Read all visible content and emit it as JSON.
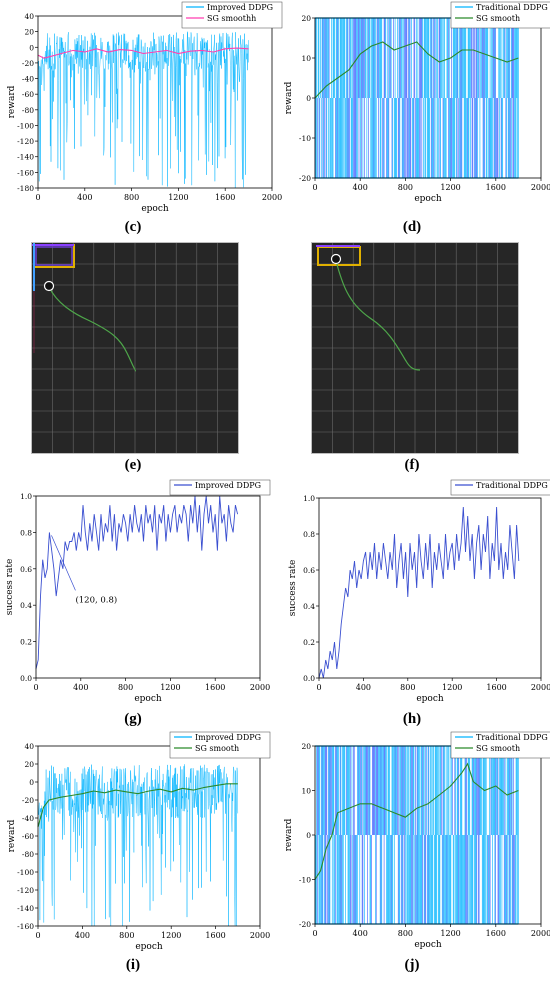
{
  "chart_data": [
    {
      "id": "c",
      "type": "line",
      "panel_label": "(c)",
      "xlabel": "epoch",
      "ylabel": "reward",
      "xlim": [
        0,
        2000
      ],
      "ylim": [
        -180,
        40
      ],
      "xticks": [
        0,
        400,
        800,
        1200,
        1600,
        2000
      ],
      "yticks": [
        40,
        20,
        0,
        -20,
        -40,
        -60,
        -80,
        -100,
        -120,
        -140,
        -160,
        -180
      ],
      "legend_position": "top-right",
      "series": [
        {
          "name": "Improved DDPG",
          "color": "#00b4ff",
          "style": "noisy",
          "x_range": [
            0,
            1800
          ],
          "band": [
            -30,
            20
          ],
          "floor": -180,
          "spike_rate": 0.18
        },
        {
          "name": "SG smoothh",
          "color": "#ff3fb0",
          "style": "smooth",
          "x": [
            0,
            50,
            100,
            200,
            300,
            400,
            500,
            600,
            700,
            800,
            900,
            1000,
            1100,
            1200,
            1300,
            1400,
            1500,
            1600,
            1700,
            1800
          ],
          "y": [
            -10,
            -14,
            -12,
            -8,
            -4,
            -6,
            -2,
            -6,
            -3,
            -4,
            -8,
            -6,
            -4,
            -8,
            -5,
            -4,
            -6,
            -2,
            -1,
            -2
          ]
        }
      ]
    },
    {
      "id": "d",
      "type": "line",
      "panel_label": "(d)",
      "xlabel": "epoch",
      "ylabel": "reward",
      "xlim": [
        0,
        2000
      ],
      "ylim": [
        -20,
        20
      ],
      "xticks": [
        0,
        400,
        800,
        1200,
        1600,
        2000
      ],
      "yticks": [
        20,
        10,
        0,
        -10,
        -20
      ],
      "legend_position": "top-right",
      "series": [
        {
          "name": "Traditional DDPG",
          "color": "#00b4ff",
          "style": "bars",
          "x_range": [
            0,
            1800
          ],
          "band": [
            -20,
            20
          ]
        },
        {
          "name": "SG smooth",
          "color": "#2a8a2a",
          "style": "smooth",
          "x": [
            0,
            100,
            200,
            300,
            400,
            500,
            600,
            700,
            800,
            900,
            1000,
            1100,
            1200,
            1300,
            1400,
            1500,
            1600,
            1700,
            1800
          ],
          "y": [
            0,
            3,
            5,
            7,
            11,
            13,
            14,
            12,
            13,
            14,
            11,
            9,
            10,
            12,
            12,
            11,
            10,
            9,
            10
          ]
        }
      ]
    },
    {
      "id": "g",
      "type": "line",
      "panel_label": "(g)",
      "xlabel": "epoch",
      "ylabel": "success rate",
      "xlim": [
        0,
        2000
      ],
      "ylim": [
        0,
        1.0
      ],
      "xticks": [
        0,
        400,
        800,
        1200,
        1600,
        2000
      ],
      "yticks": [
        1.0,
        0.8,
        0.6,
        0.4,
        0.2,
        0.0
      ],
      "legend_position": "top-right",
      "annotation": {
        "text": "(120, 0.8)",
        "x": 120,
        "y": 0.8
      },
      "series": [
        {
          "name": "Improved DDPG",
          "color": "#3a4fd0",
          "style": "line",
          "x": [
            0,
            20,
            40,
            60,
            80,
            100,
            120,
            140,
            160,
            180,
            200,
            220,
            240,
            260,
            280,
            300,
            320,
            340,
            360,
            380,
            400,
            420,
            440,
            460,
            480,
            500,
            520,
            540,
            560,
            580,
            600,
            620,
            640,
            660,
            680,
            700,
            720,
            740,
            760,
            780,
            800,
            820,
            840,
            860,
            880,
            900,
            920,
            940,
            960,
            980,
            1000,
            1020,
            1040,
            1060,
            1080,
            1100,
            1120,
            1140,
            1160,
            1180,
            1200,
            1220,
            1240,
            1260,
            1280,
            1300,
            1320,
            1340,
            1360,
            1380,
            1400,
            1420,
            1440,
            1460,
            1480,
            1500,
            1520,
            1540,
            1560,
            1580,
            1600,
            1620,
            1640,
            1660,
            1680,
            1700,
            1720,
            1740,
            1760,
            1780,
            1800
          ],
          "y": [
            0.05,
            0.1,
            0.45,
            0.65,
            0.55,
            0.6,
            0.8,
            0.7,
            0.6,
            0.45,
            0.55,
            0.65,
            0.6,
            0.75,
            0.7,
            0.75,
            0.75,
            0.8,
            0.7,
            0.8,
            0.75,
            0.95,
            0.8,
            0.7,
            0.85,
            0.75,
            0.9,
            0.8,
            0.7,
            0.9,
            0.75,
            0.85,
            0.8,
            0.95,
            0.75,
            0.9,
            0.7,
            0.85,
            0.8,
            0.9,
            0.85,
            0.75,
            0.9,
            0.8,
            0.95,
            0.85,
            0.8,
            0.9,
            0.75,
            0.95,
            0.85,
            0.9,
            0.8,
            0.95,
            0.7,
            0.9,
            0.85,
            0.95,
            0.75,
            0.9,
            0.8,
            0.9,
            0.95,
            0.8,
            0.9,
            0.85,
            0.95,
            0.9,
            0.75,
            0.95,
            0.85,
            1.0,
            0.8,
            0.95,
            0.7,
            0.9,
            1.0,
            0.85,
            0.95,
            0.8,
            0.9,
            0.7,
            1.0,
            0.85,
            0.9,
            0.75,
            0.95,
            0.85,
            0.8,
            0.95,
            0.9
          ]
        }
      ]
    },
    {
      "id": "h",
      "type": "line",
      "panel_label": "(h)",
      "xlabel": "epoch",
      "ylabel": "success rate",
      "xlim": [
        0,
        2000
      ],
      "ylim": [
        0,
        1.0
      ],
      "xticks": [
        0,
        400,
        800,
        1200,
        1600,
        2000
      ],
      "yticks": [
        1.0,
        0.8,
        0.6,
        0.4,
        0.2,
        0.0
      ],
      "legend_position": "top-right",
      "series": [
        {
          "name": "Traditional DDPG",
          "color": "#3a4fd0",
          "style": "line",
          "x": [
            0,
            20,
            40,
            60,
            80,
            100,
            120,
            140,
            160,
            180,
            200,
            220,
            240,
            260,
            280,
            300,
            320,
            340,
            360,
            380,
            400,
            420,
            440,
            460,
            480,
            500,
            520,
            540,
            560,
            580,
            600,
            620,
            640,
            660,
            680,
            700,
            720,
            740,
            760,
            780,
            800,
            820,
            840,
            860,
            880,
            900,
            920,
            940,
            960,
            980,
            1000,
            1020,
            1040,
            1060,
            1080,
            1100,
            1120,
            1140,
            1160,
            1180,
            1200,
            1220,
            1240,
            1260,
            1280,
            1300,
            1320,
            1340,
            1360,
            1380,
            1400,
            1420,
            1440,
            1460,
            1480,
            1500,
            1520,
            1540,
            1560,
            1580,
            1600,
            1620,
            1640,
            1660,
            1680,
            1700,
            1720,
            1740,
            1760,
            1780,
            1800
          ],
          "y": [
            0.0,
            0.05,
            0.0,
            0.1,
            0.05,
            0.15,
            0.1,
            0.2,
            0.05,
            0.15,
            0.3,
            0.4,
            0.5,
            0.45,
            0.6,
            0.55,
            0.65,
            0.5,
            0.6,
            0.55,
            0.65,
            0.7,
            0.55,
            0.7,
            0.6,
            0.75,
            0.55,
            0.7,
            0.6,
            0.75,
            0.65,
            0.55,
            0.7,
            0.6,
            0.8,
            0.5,
            0.65,
            0.75,
            0.55,
            0.7,
            0.45,
            0.75,
            0.6,
            0.7,
            0.5,
            0.8,
            0.65,
            0.55,
            0.75,
            0.6,
            0.8,
            0.5,
            0.7,
            0.6,
            0.75,
            0.65,
            0.55,
            0.8,
            0.6,
            0.7,
            0.75,
            0.6,
            0.8,
            0.65,
            0.75,
            0.95,
            0.7,
            0.9,
            0.65,
            0.8,
            0.55,
            0.75,
            0.85,
            0.6,
            0.8,
            0.7,
            0.9,
            0.55,
            0.75,
            0.65,
            0.95,
            0.6,
            0.75,
            0.55,
            0.7,
            0.6,
            0.85,
            0.7,
            0.55,
            0.85,
            0.65
          ]
        }
      ]
    },
    {
      "id": "i",
      "type": "line",
      "panel_label": "(i)",
      "xlabel": "epoch",
      "ylabel": "reward",
      "xlim": [
        0,
        2000
      ],
      "ylim": [
        -160,
        40
      ],
      "xticks": [
        0,
        400,
        800,
        1200,
        1600,
        2000
      ],
      "yticks": [
        40,
        20,
        0,
        -20,
        -40,
        -60,
        -80,
        -100,
        -120,
        -140,
        -160
      ],
      "legend_position": "top-right",
      "series": [
        {
          "name": "Improved DDPG",
          "color": "#00b4ff",
          "style": "noisy",
          "x_range": [
            0,
            1800
          ],
          "band": [
            -40,
            20
          ],
          "floor": -160,
          "spike_rate": 0.14
        },
        {
          "name": "SG smooth",
          "color": "#2a8a2a",
          "style": "smooth",
          "x": [
            0,
            50,
            100,
            200,
            300,
            400,
            500,
            600,
            700,
            800,
            900,
            1000,
            1100,
            1200,
            1300,
            1400,
            1500,
            1600,
            1700,
            1800
          ],
          "y": [
            -50,
            -28,
            -20,
            -17,
            -15,
            -13,
            -10,
            -12,
            -9,
            -11,
            -13,
            -10,
            -8,
            -11,
            -7,
            -9,
            -6,
            -4,
            -2,
            -2
          ]
        }
      ]
    },
    {
      "id": "j",
      "type": "line",
      "panel_label": "(j)",
      "xlabel": "epoch",
      "ylabel": "reward",
      "xlim": [
        0,
        2000
      ],
      "ylim": [
        -20,
        20
      ],
      "xticks": [
        0,
        400,
        800,
        1200,
        1600,
        2000
      ],
      "yticks": [
        20,
        10,
        0,
        -10,
        -20
      ],
      "legend_position": "top-right",
      "series": [
        {
          "name": "Traditional DDPG",
          "color": "#00b4ff",
          "style": "bars",
          "x_range": [
            0,
            1800
          ],
          "band": [
            -20,
            20
          ]
        },
        {
          "name": "SG smooth",
          "color": "#2a8a2a",
          "style": "smooth",
          "x": [
            0,
            50,
            100,
            150,
            200,
            300,
            400,
            500,
            600,
            700,
            800,
            900,
            1000,
            1100,
            1200,
            1300,
            1350,
            1400,
            1500,
            1600,
            1700,
            1800
          ],
          "y": [
            -10,
            -8,
            -3,
            0,
            5,
            6,
            7,
            7,
            6,
            5,
            4,
            6,
            7,
            9,
            11,
            14,
            16,
            12,
            10,
            11,
            9,
            10
          ]
        }
      ]
    }
  ],
  "panels": {
    "e": {
      "label": "(e)",
      "colors": {
        "background": "#262626",
        "grid": "#6a6a6a",
        "path": "#4ea64a",
        "agent": "#111111"
      }
    },
    "f": {
      "label": "(f)",
      "colors": {
        "background": "#262626",
        "grid": "#6a6a6a",
        "path": "#4ea64a",
        "agent": "#111111"
      }
    }
  }
}
